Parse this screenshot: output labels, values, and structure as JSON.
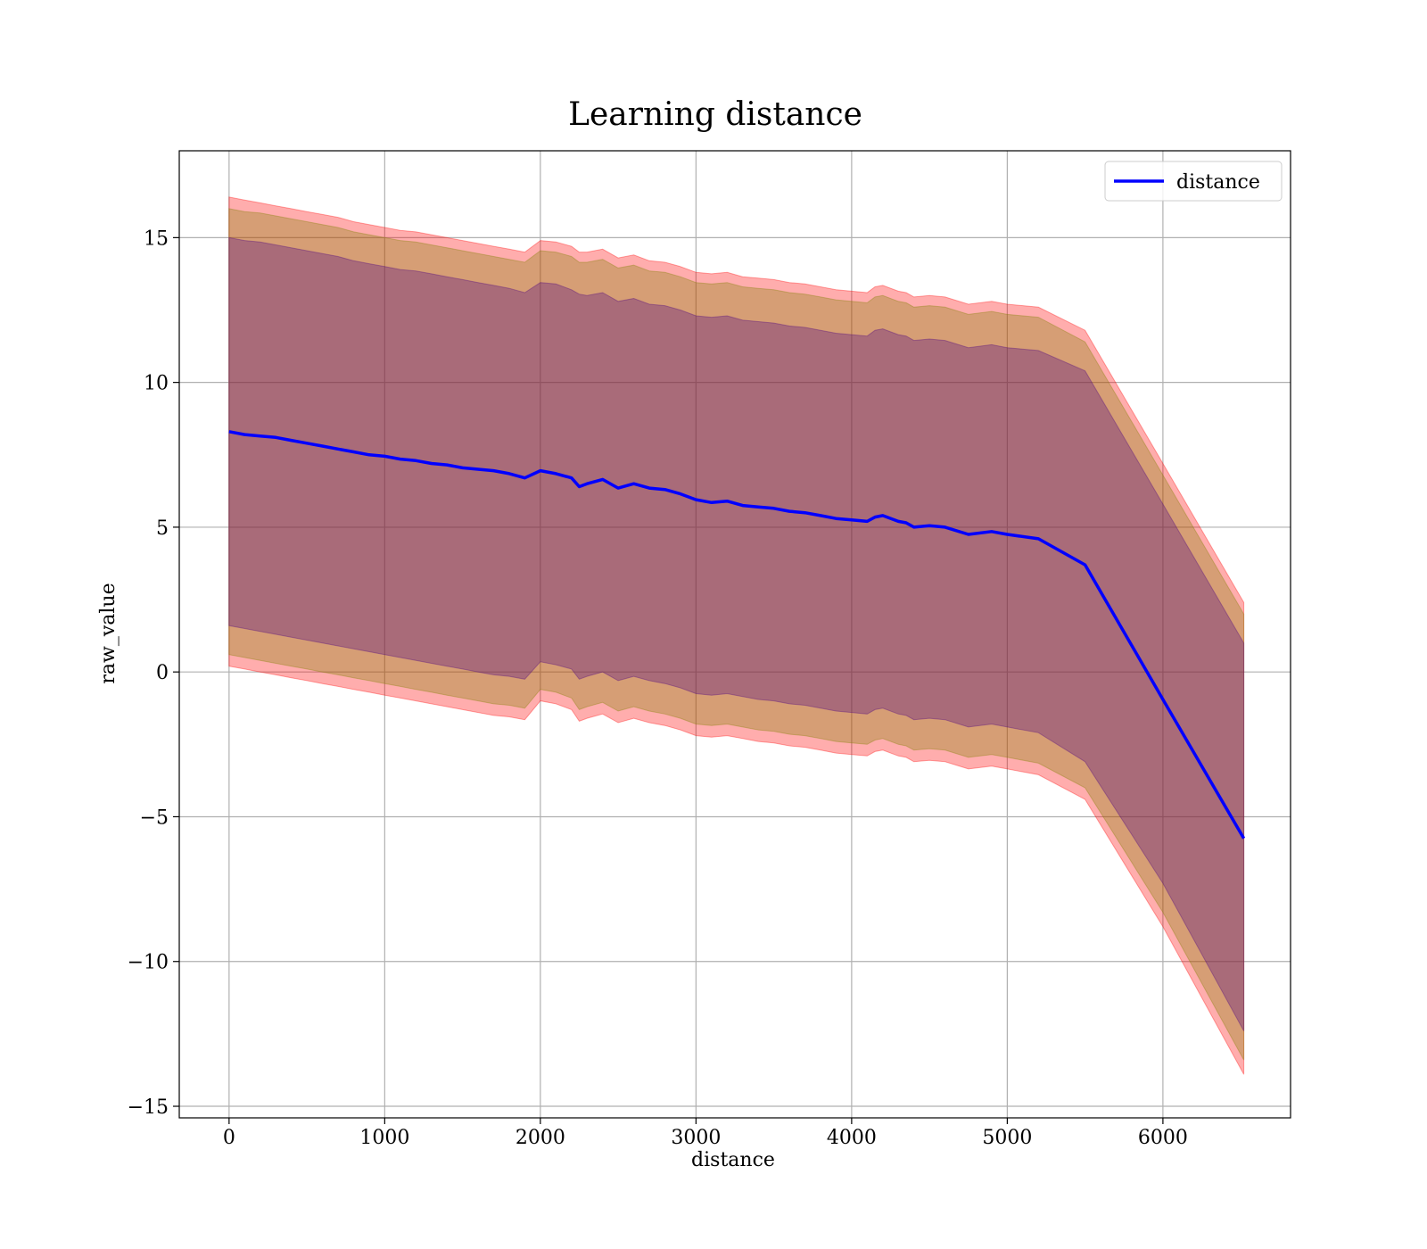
{
  "chart_data": {
    "type": "line",
    "title": "Learning distance",
    "xlabel": "distance",
    "ylabel": "raw_value",
    "xlim": [
      -320,
      6820
    ],
    "ylim": [
      -15.4,
      18.0
    ],
    "xticks": [
      0,
      1000,
      2000,
      3000,
      4000,
      5000,
      6000
    ],
    "xtick_labels": [
      "0",
      "1000",
      "2000",
      "3000",
      "4000",
      "5000",
      "6000"
    ],
    "yticks": [
      -15,
      -10,
      -5,
      0,
      5,
      10,
      15
    ],
    "ytick_labels": [
      "−15",
      "−10",
      "−5",
      "0",
      "5",
      "10",
      "15"
    ],
    "grid": true,
    "legend_position": "top-right",
    "x": [
      0,
      100,
      200,
      300,
      400,
      500,
      600,
      700,
      800,
      900,
      1000,
      1100,
      1200,
      1300,
      1400,
      1500,
      1600,
      1700,
      1800,
      1900,
      2000,
      2100,
      2200,
      2250,
      2300,
      2400,
      2500,
      2600,
      2700,
      2800,
      2900,
      3000,
      3100,
      3200,
      3300,
      3400,
      3500,
      3600,
      3700,
      3800,
      3900,
      4000,
      4100,
      4150,
      4200,
      4300,
      4350,
      4400,
      4500,
      4600,
      4750,
      4900,
      5000,
      5200,
      5500,
      6000,
      6520
    ],
    "series": [
      {
        "name": "distance",
        "color": "#0000ff",
        "y": [
          8.3,
          8.2,
          8.15,
          8.1,
          8.0,
          7.9,
          7.8,
          7.7,
          7.6,
          7.5,
          7.45,
          7.35,
          7.3,
          7.2,
          7.15,
          7.05,
          7.0,
          6.95,
          6.85,
          6.7,
          6.95,
          6.85,
          6.7,
          6.4,
          6.5,
          6.65,
          6.35,
          6.5,
          6.35,
          6.3,
          6.15,
          5.95,
          5.85,
          5.9,
          5.75,
          5.7,
          5.65,
          5.55,
          5.5,
          5.4,
          5.3,
          5.25,
          5.2,
          5.35,
          5.4,
          5.2,
          5.15,
          5.0,
          5.05,
          5.0,
          4.75,
          4.85,
          4.75,
          4.6,
          3.7,
          -0.95,
          -5.75
        ]
      }
    ],
    "bands": [
      {
        "color": "#ff0000",
        "upper": [
          16.4,
          16.3,
          16.2,
          16.1,
          16.0,
          15.9,
          15.8,
          15.7,
          15.55,
          15.45,
          15.35,
          15.25,
          15.2,
          15.1,
          15.0,
          14.9,
          14.8,
          14.7,
          14.6,
          14.5,
          14.9,
          14.85,
          14.7,
          14.5,
          14.5,
          14.6,
          14.3,
          14.4,
          14.2,
          14.15,
          14.0,
          13.8,
          13.75,
          13.8,
          13.65,
          13.6,
          13.55,
          13.45,
          13.4,
          13.3,
          13.2,
          13.15,
          13.1,
          13.3,
          13.35,
          13.15,
          13.1,
          12.95,
          13.0,
          12.95,
          12.7,
          12.8,
          12.7,
          12.6,
          11.8,
          7.2,
          2.4
        ],
        "lower": [
          0.2,
          0.1,
          0.0,
          -0.1,
          -0.2,
          -0.3,
          -0.4,
          -0.5,
          -0.6,
          -0.7,
          -0.8,
          -0.9,
          -1.0,
          -1.1,
          -1.2,
          -1.3,
          -1.4,
          -1.5,
          -1.55,
          -1.65,
          -1.0,
          -1.1,
          -1.3,
          -1.7,
          -1.6,
          -1.45,
          -1.75,
          -1.6,
          -1.75,
          -1.85,
          -2.0,
          -2.2,
          -2.25,
          -2.2,
          -2.3,
          -2.4,
          -2.45,
          -2.55,
          -2.6,
          -2.7,
          -2.8,
          -2.85,
          -2.9,
          -2.75,
          -2.7,
          -2.9,
          -2.95,
          -3.1,
          -3.05,
          -3.1,
          -3.35,
          -3.25,
          -3.35,
          -3.55,
          -4.4,
          -8.8,
          -13.9
        ]
      },
      {
        "color": "#808000",
        "upper": [
          16.0,
          15.9,
          15.85,
          15.75,
          15.65,
          15.55,
          15.45,
          15.35,
          15.2,
          15.1,
          15.0,
          14.9,
          14.85,
          14.75,
          14.65,
          14.55,
          14.45,
          14.35,
          14.25,
          14.15,
          14.55,
          14.5,
          14.35,
          14.15,
          14.15,
          14.25,
          13.95,
          14.05,
          13.85,
          13.8,
          13.65,
          13.45,
          13.4,
          13.45,
          13.3,
          13.25,
          13.2,
          13.1,
          13.05,
          12.95,
          12.85,
          12.8,
          12.75,
          12.95,
          13.0,
          12.8,
          12.75,
          12.6,
          12.65,
          12.6,
          12.35,
          12.45,
          12.35,
          12.25,
          11.4,
          6.8,
          2.0
        ],
        "lower": [
          0.6,
          0.5,
          0.4,
          0.3,
          0.2,
          0.1,
          0.0,
          -0.1,
          -0.2,
          -0.3,
          -0.4,
          -0.5,
          -0.6,
          -0.7,
          -0.8,
          -0.9,
          -1.0,
          -1.1,
          -1.15,
          -1.25,
          -0.6,
          -0.7,
          -0.9,
          -1.3,
          -1.2,
          -1.05,
          -1.35,
          -1.2,
          -1.35,
          -1.45,
          -1.6,
          -1.8,
          -1.85,
          -1.8,
          -1.9,
          -2.0,
          -2.05,
          -2.15,
          -2.2,
          -2.3,
          -2.4,
          -2.45,
          -2.5,
          -2.35,
          -2.3,
          -2.5,
          -2.55,
          -2.7,
          -2.65,
          -2.7,
          -2.95,
          -2.85,
          -2.95,
          -3.15,
          -4.0,
          -8.3,
          -13.4
        ]
      },
      {
        "color": "#4b0082",
        "upper": [
          15.0,
          14.9,
          14.85,
          14.75,
          14.65,
          14.55,
          14.45,
          14.35,
          14.2,
          14.1,
          14.0,
          13.9,
          13.85,
          13.75,
          13.65,
          13.55,
          13.45,
          13.35,
          13.25,
          13.1,
          13.45,
          13.4,
          13.2,
          13.05,
          13.0,
          13.1,
          12.8,
          12.9,
          12.7,
          12.65,
          12.5,
          12.3,
          12.25,
          12.3,
          12.15,
          12.1,
          12.05,
          11.95,
          11.9,
          11.8,
          11.7,
          11.65,
          11.6,
          11.8,
          11.85,
          11.65,
          11.6,
          11.45,
          11.5,
          11.45,
          11.2,
          11.3,
          11.2,
          11.1,
          10.4,
          5.8,
          1.0
        ],
        "lower": [
          1.6,
          1.5,
          1.4,
          1.3,
          1.2,
          1.1,
          1.0,
          0.9,
          0.8,
          0.7,
          0.6,
          0.5,
          0.4,
          0.3,
          0.2,
          0.1,
          0.0,
          -0.1,
          -0.15,
          -0.25,
          0.35,
          0.25,
          0.1,
          -0.25,
          -0.15,
          0.0,
          -0.3,
          -0.15,
          -0.3,
          -0.4,
          -0.55,
          -0.75,
          -0.8,
          -0.75,
          -0.85,
          -0.95,
          -1.0,
          -1.1,
          -1.15,
          -1.25,
          -1.35,
          -1.4,
          -1.45,
          -1.3,
          -1.25,
          -1.45,
          -1.5,
          -1.65,
          -1.6,
          -1.65,
          -1.9,
          -1.8,
          -1.9,
          -2.1,
          -3.1,
          -7.3,
          -12.4
        ]
      }
    ]
  }
}
